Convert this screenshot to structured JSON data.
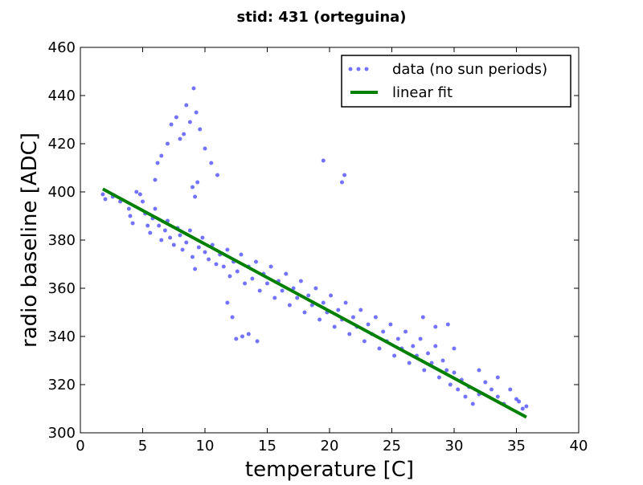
{
  "chart_data": {
    "type": "scatter",
    "title": "stid: 431 (orteguina)",
    "xlabel": "temperature [C]",
    "ylabel": "radio baseline [ADC]",
    "xlim": [
      0,
      40
    ],
    "ylim": [
      300,
      460
    ],
    "xticks": [
      0,
      5,
      10,
      15,
      20,
      25,
      30,
      35,
      40
    ],
    "yticks": [
      300,
      320,
      340,
      360,
      380,
      400,
      420,
      440,
      460
    ],
    "xtick_labels": [
      "0",
      "5",
      "10",
      "15",
      "20",
      "25",
      "30",
      "35",
      "40"
    ],
    "ytick_labels": [
      "300",
      "320",
      "340",
      "360",
      "380",
      "400",
      "420",
      "440",
      "460"
    ],
    "grid": false,
    "legend_position": "top-right",
    "colors": {
      "data": "#0000ff",
      "fit": "#008000"
    },
    "series": [
      {
        "name": "data (no sun periods)",
        "kind": "scatter",
        "points": [
          [
            1.8,
            399
          ],
          [
            2.0,
            397
          ],
          [
            2.6,
            398
          ],
          [
            3.2,
            396
          ],
          [
            3.9,
            393
          ],
          [
            4.0,
            390
          ],
          [
            4.2,
            387
          ],
          [
            4.5,
            400
          ],
          [
            4.8,
            399
          ],
          [
            5.0,
            396
          ],
          [
            5.2,
            391
          ],
          [
            5.4,
            386
          ],
          [
            5.6,
            383
          ],
          [
            5.8,
            389
          ],
          [
            6.0,
            393
          ],
          [
            6.3,
            386
          ],
          [
            6.5,
            380
          ],
          [
            6.8,
            384
          ],
          [
            7.0,
            388
          ],
          [
            7.2,
            381
          ],
          [
            7.5,
            378
          ],
          [
            7.8,
            385
          ],
          [
            8.0,
            382
          ],
          [
            8.2,
            376
          ],
          [
            8.5,
            379
          ],
          [
            8.8,
            384
          ],
          [
            9.0,
            373
          ],
          [
            9.2,
            368
          ],
          [
            9.5,
            377
          ],
          [
            9.8,
            381
          ],
          [
            10.0,
            375
          ],
          [
            10.3,
            372
          ],
          [
            10.6,
            378
          ],
          [
            10.9,
            370
          ],
          [
            11.2,
            374
          ],
          [
            11.5,
            369
          ],
          [
            11.8,
            376
          ],
          [
            12.0,
            365
          ],
          [
            12.3,
            371
          ],
          [
            12.6,
            367
          ],
          [
            12.9,
            374
          ],
          [
            13.2,
            362
          ],
          [
            13.5,
            369
          ],
          [
            13.8,
            364
          ],
          [
            14.1,
            371
          ],
          [
            14.4,
            359
          ],
          [
            14.7,
            366
          ],
          [
            15.0,
            362
          ],
          [
            15.3,
            369
          ],
          [
            15.6,
            356
          ],
          [
            15.9,
            363
          ],
          [
            16.2,
            359
          ],
          [
            16.5,
            366
          ],
          [
            16.8,
            353
          ],
          [
            17.1,
            360
          ],
          [
            17.4,
            356
          ],
          [
            17.7,
            363
          ],
          [
            18.0,
            350
          ],
          [
            18.3,
            357
          ],
          [
            18.6,
            353
          ],
          [
            18.9,
            360
          ],
          [
            19.2,
            347
          ],
          [
            19.5,
            354
          ],
          [
            19.8,
            350
          ],
          [
            20.1,
            357
          ],
          [
            20.4,
            344
          ],
          [
            20.7,
            351
          ],
          [
            21.0,
            347
          ],
          [
            21.3,
            354
          ],
          [
            21.6,
            341
          ],
          [
            21.9,
            348
          ],
          [
            22.2,
            344
          ],
          [
            22.5,
            351
          ],
          [
            22.8,
            338
          ],
          [
            23.1,
            345
          ],
          [
            23.4,
            341
          ],
          [
            23.7,
            348
          ],
          [
            24.0,
            335
          ],
          [
            24.3,
            342
          ],
          [
            24.6,
            338
          ],
          [
            24.9,
            345
          ],
          [
            25.2,
            332
          ],
          [
            25.5,
            339
          ],
          [
            25.8,
            335
          ],
          [
            26.1,
            342
          ],
          [
            26.4,
            329
          ],
          [
            26.7,
            336
          ],
          [
            27.0,
            332
          ],
          [
            27.3,
            339
          ],
          [
            27.6,
            326
          ],
          [
            27.9,
            333
          ],
          [
            28.2,
            329
          ],
          [
            28.5,
            336
          ],
          [
            28.8,
            323
          ],
          [
            29.1,
            330
          ],
          [
            29.4,
            326
          ],
          [
            29.7,
            320
          ],
          [
            30.0,
            325
          ],
          [
            30.3,
            318
          ],
          [
            30.6,
            322
          ],
          [
            30.9,
            315
          ],
          [
            31.2,
            319
          ],
          [
            31.5,
            312
          ],
          [
            32.0,
            316
          ],
          [
            32.5,
            321
          ],
          [
            33.0,
            318
          ],
          [
            33.5,
            315
          ],
          [
            34.0,
            312
          ],
          [
            34.5,
            318
          ],
          [
            35.0,
            314
          ],
          [
            35.5,
            310
          ],
          [
            35.8,
            311
          ],
          [
            6.5,
            415
          ],
          [
            7.0,
            420
          ],
          [
            7.3,
            428
          ],
          [
            7.7,
            431
          ],
          [
            8.0,
            422
          ],
          [
            8.3,
            424
          ],
          [
            8.5,
            436
          ],
          [
            8.8,
            429
          ],
          [
            9.1,
            443
          ],
          [
            9.3,
            433
          ],
          [
            9.6,
            426
          ],
          [
            10.0,
            418
          ],
          [
            10.5,
            412
          ],
          [
            11.0,
            407
          ],
          [
            6.0,
            405
          ],
          [
            6.2,
            412
          ],
          [
            9.0,
            402
          ],
          [
            9.2,
            398
          ],
          [
            9.4,
            404
          ],
          [
            12.5,
            339
          ],
          [
            13.0,
            340
          ],
          [
            13.5,
            341
          ],
          [
            14.2,
            338
          ],
          [
            11.8,
            354
          ],
          [
            12.2,
            348
          ],
          [
            19.5,
            413
          ],
          [
            21.2,
            407
          ],
          [
            21.0,
            404
          ],
          [
            27.5,
            348
          ],
          [
            28.5,
            344
          ],
          [
            29.5,
            345
          ],
          [
            30.0,
            335
          ],
          [
            32.0,
            326
          ],
          [
            33.5,
            323
          ],
          [
            35.2,
            313
          ]
        ]
      },
      {
        "name": "linear fit",
        "kind": "line",
        "x": [
          1.8,
          35.8
        ],
        "y": [
          401.2,
          306.5
        ]
      }
    ]
  }
}
